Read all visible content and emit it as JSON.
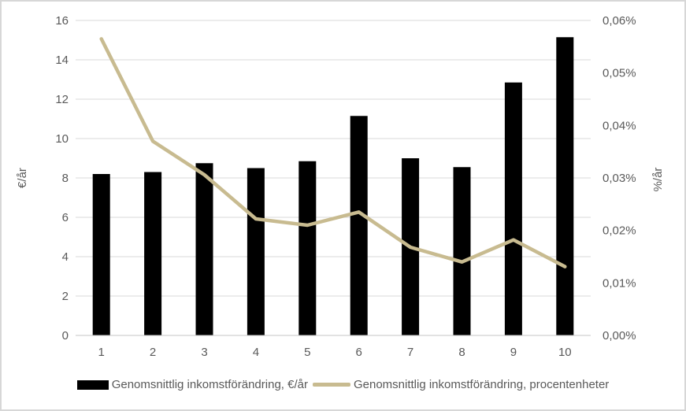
{
  "colors": {
    "background": "#FFFFFF",
    "border": "#D7D7D7",
    "grid": "#D9D9D9",
    "axis_line": "#C6C6C6",
    "text": "#595959",
    "bar": "#000000",
    "line": "#C8BB90"
  },
  "chart_data": {
    "type": "combo",
    "subtypes": [
      "bar",
      "line"
    ],
    "categories": [
      "1",
      "2",
      "3",
      "4",
      "5",
      "6",
      "7",
      "8",
      "9",
      "10"
    ],
    "series": [
      {
        "name": "Genomsnittlig inkomstförändring, €/år",
        "type": "bar",
        "axis": "left",
        "color": "#000000",
        "values": [
          8.2,
          8.3,
          8.75,
          8.5,
          8.85,
          11.15,
          9.0,
          8.55,
          12.85,
          15.15
        ]
      },
      {
        "name": "Genomsnittlig inkomstförändring, procentenheter",
        "type": "line",
        "axis": "right",
        "color": "#C8BB90",
        "values": [
          0.0565,
          0.037,
          0.0306,
          0.0222,
          0.021,
          0.0235,
          0.0168,
          0.014,
          0.0182,
          0.0131
        ]
      }
    ],
    "left_axis": {
      "title": "€/år",
      "min": 0,
      "max": 16,
      "tick_values": [
        0,
        2,
        4,
        6,
        8,
        10,
        12,
        14,
        16
      ],
      "tick_labels": [
        "0",
        "2",
        "4",
        "6",
        "8",
        "10",
        "12",
        "14",
        "16"
      ]
    },
    "right_axis": {
      "title": "%/år",
      "min": 0,
      "max": 0.06,
      "tick_values": [
        0,
        0.01,
        0.02,
        0.03,
        0.04,
        0.05,
        0.06
      ],
      "tick_labels": [
        "0,00%",
        "0,01%",
        "0,02%",
        "0,03%",
        "0,04%",
        "0,05%",
        "0,06%"
      ]
    },
    "title": "",
    "grid": "horizontal",
    "legend_position": "bottom"
  }
}
